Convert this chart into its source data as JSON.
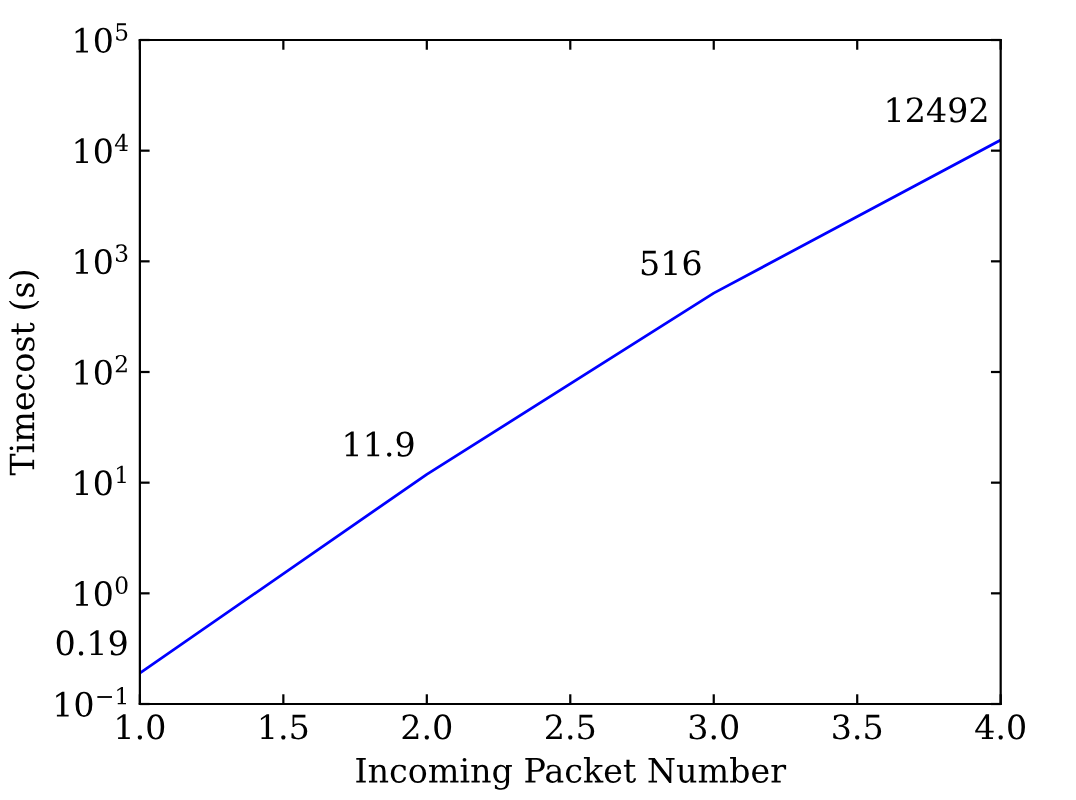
{
  "chart_data": {
    "type": "line",
    "xlabel": "Incoming Packet Number",
    "ylabel": "Timecost (s)",
    "x": [
      1,
      2,
      3,
      4
    ],
    "series": [
      {
        "color": "#0000ff",
        "values": [
          0.19,
          11.9,
          516,
          12492
        ]
      }
    ],
    "data_labels": true,
    "log": "y",
    "grid": false,
    "marker": "none",
    "line_style": "solid",
    "xlim": [
      1.0,
      4.0
    ],
    "xticks": [
      {
        "value": 1.0,
        "label": "1.0"
      },
      {
        "value": 1.5,
        "label": "1.5"
      },
      {
        "value": 2.0,
        "label": "2.0"
      },
      {
        "value": 2.5,
        "label": "2.5"
      },
      {
        "value": 3.0,
        "label": "3.0"
      },
      {
        "value": 3.5,
        "label": "3.5"
      },
      {
        "value": 4.0,
        "label": "4.0"
      }
    ],
    "ylim": [
      0.1,
      100000
    ],
    "yticks": [
      {
        "value": 0.1,
        "label": "10$^{−1}$"
      },
      {
        "value": 1,
        "label": "10$^{0}$"
      },
      {
        "value": 10,
        "label": "10$^{1}$"
      },
      {
        "value": 100,
        "label": "10$^{2}$"
      },
      {
        "value": 1000,
        "label": "10$^{3}$"
      },
      {
        "value": 10000,
        "label": "10$^{4}$"
      },
      {
        "value": 100000,
        "label": "10$^{5}$"
      }
    ]
  }
}
